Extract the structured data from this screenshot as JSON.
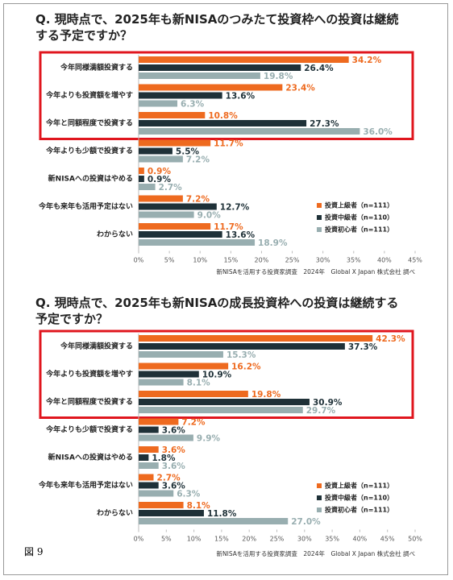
{
  "figure_label": "図 9",
  "chart_data": [
    {
      "type": "bar",
      "orientation": "horizontal",
      "title": "Q. 現時点で、2025年も新NISAのつみたて投資枠への投資は継続する予定ですか？",
      "categories": [
        "今年同様満額投資する",
        "今年よりも投資額を増やす",
        "今年と同額程度で投資する",
        "今年よりも少額で投資する",
        "新NISAへの投資はやめる",
        "今年も来年も活用予定はない",
        "わからない"
      ],
      "series": [
        {
          "name": "投資上級者（n=111）",
          "color": "#ee6a1f",
          "values": [
            34.2,
            23.4,
            10.8,
            11.7,
            0.9,
            7.2,
            11.7
          ],
          "value_labels": [
            "34.2%",
            "23.4%",
            "10.8%",
            "11.7%",
            "0.9%",
            "7.2%",
            "11.7%"
          ]
        },
        {
          "name": "投資中級者（n=110）",
          "color": "#1f3138",
          "values": [
            26.4,
            13.6,
            27.3,
            5.5,
            0.9,
            12.7,
            13.6
          ],
          "value_labels": [
            "26.4%",
            "13.6%",
            "27.3%",
            "5.5%",
            "0.9%",
            "12.7%",
            "13.6%"
          ]
        },
        {
          "name": "投資初心者（n=111）",
          "color": "#98aeb0",
          "values": [
            19.8,
            6.3,
            36.0,
            7.2,
            2.7,
            9.0,
            18.9
          ],
          "value_labels": [
            "19.8%",
            "6.3%",
            "36.0%",
            "7.2%",
            "2.7%",
            "9.0%",
            "18.9%"
          ]
        }
      ],
      "xlim": [
        0,
        45
      ],
      "xticks": [
        {
          "value": 0,
          "label": "0%"
        },
        {
          "value": 5,
          "label": "5%"
        },
        {
          "value": 10,
          "label": "10%"
        },
        {
          "value": 15,
          "label": "15%"
        },
        {
          "value": 20,
          "label": "20%"
        },
        {
          "value": 25,
          "label": "25%"
        },
        {
          "value": 30,
          "label": "30%"
        },
        {
          "value": 35,
          "label": "35%"
        },
        {
          "value": 40,
          "label": "40%"
        },
        {
          "value": 45,
          "label": "45%"
        }
      ],
      "source": "新NISAを活用する投資家調査　2024年　Global X Japan 株式会社 調べ"
    },
    {
      "type": "bar",
      "orientation": "horizontal",
      "title": "Q. 現時点で、2025年も新NISAの成長投資枠への投資は継続する予定ですか？",
      "categories": [
        "今年同様満額投資する",
        "今年よりも投資額を増やす",
        "今年と同額程度で投資する",
        "今年よりも少額で投資する",
        "新NISAへの投資はやめる",
        "今年も来年も活用予定はない",
        "わからない"
      ],
      "series": [
        {
          "name": "投資上級者（n=111）",
          "color": "#ee6a1f",
          "values": [
            42.3,
            16.2,
            19.8,
            7.2,
            3.6,
            2.7,
            8.1
          ],
          "value_labels": [
            "42.3%",
            "16.2%",
            "19.8%",
            "7.2%",
            "3.6%",
            "2.7%",
            "8.1%"
          ]
        },
        {
          "name": "投資中級者（n=110）",
          "color": "#1f3138",
          "values": [
            37.3,
            10.9,
            30.9,
            3.6,
            1.8,
            3.6,
            11.8
          ],
          "value_labels": [
            "37.3%",
            "10.9%",
            "30.9%",
            "3.6%",
            "1.8%",
            "3.6%",
            "11.8%"
          ]
        },
        {
          "name": "投資初心者（n=111）",
          "color": "#98aeb0",
          "values": [
            15.3,
            8.1,
            29.7,
            9.9,
            3.6,
            6.3,
            27.0
          ],
          "value_labels": [
            "15.3%",
            "8.1%",
            "29.7%",
            "9.9%",
            "3.6%",
            "6.3%",
            "27.0%"
          ]
        }
      ],
      "xlim": [
        0,
        50
      ],
      "xticks": [
        {
          "value": 0,
          "label": "0%"
        },
        {
          "value": 5,
          "label": "5%"
        },
        {
          "value": 10,
          "label": "10%"
        },
        {
          "value": 15,
          "label": "15%"
        },
        {
          "value": 20,
          "label": "20%"
        },
        {
          "value": 25,
          "label": "25%"
        },
        {
          "value": 30,
          "label": "30%"
        },
        {
          "value": 35,
          "label": "35%"
        },
        {
          "value": 40,
          "label": "40%"
        },
        {
          "value": 45,
          "label": "45%"
        },
        {
          "value": 50,
          "label": "50%"
        }
      ],
      "source": "新NISAを活用する投資家調査　2024年　Global X Japan 株式会社 調べ"
    }
  ]
}
